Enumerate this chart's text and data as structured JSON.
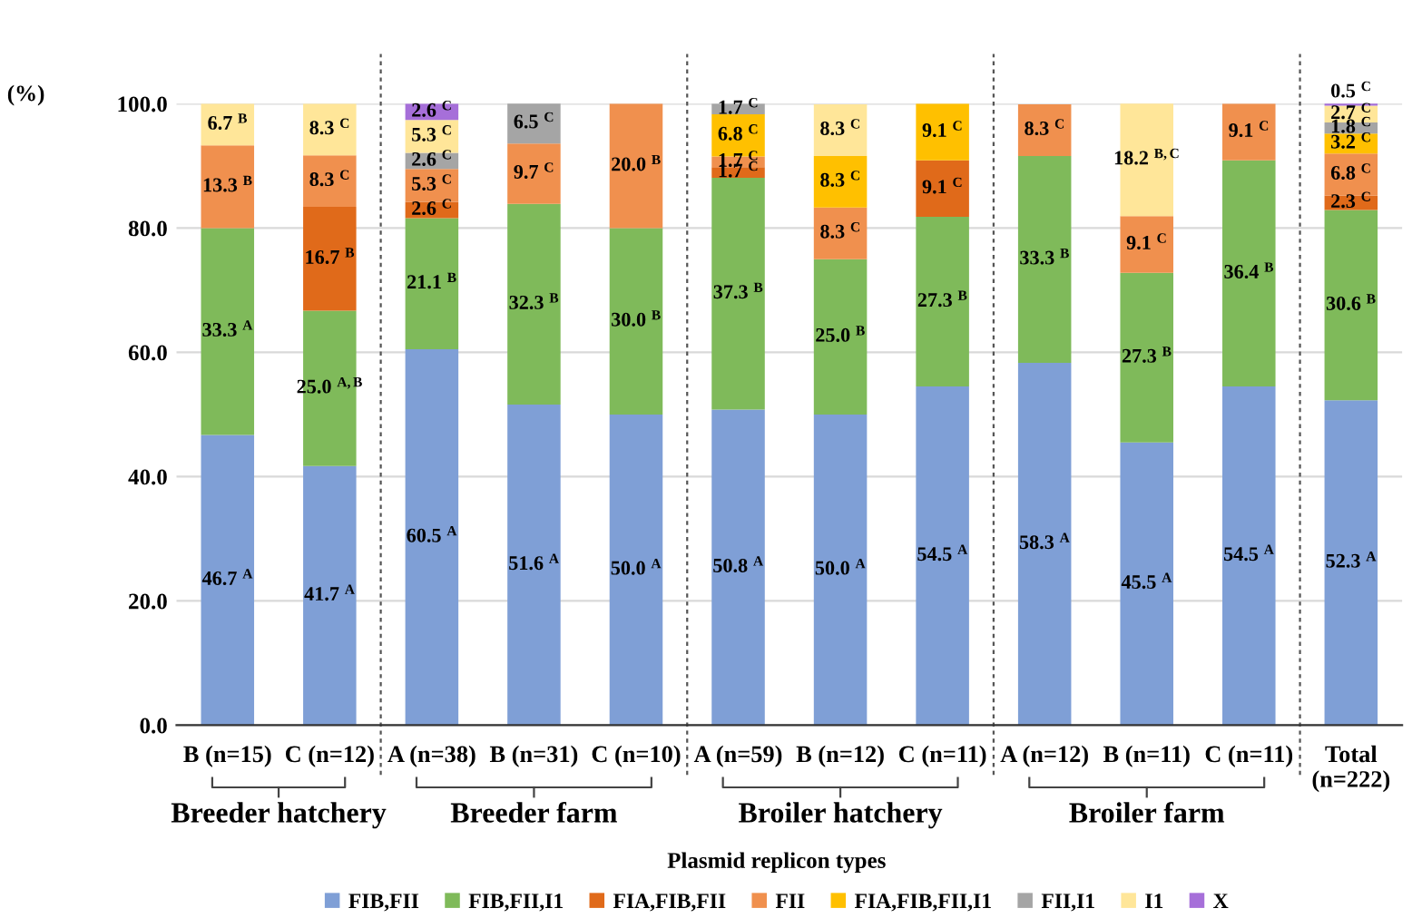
{
  "chart_data": {
    "type": "bar",
    "stacked": true,
    "ylabel": "(%)",
    "legend_title": "Plasmid replicon types",
    "legend": "bottom",
    "grid": "y",
    "categories": [
      "B (n=15)",
      "C (n=12)",
      "A (n=38)",
      "B (n=31)",
      "C (n=10)",
      "A (n=59)",
      "B (n=12)",
      "C (n=11)",
      "A (n=12)",
      "B (n=11)",
      "C (n=11)",
      "Total\n(n=222)"
    ],
    "annotations": [
      "Breeder hatchery",
      "Breeder farm",
      "Broiler hatchery",
      "Broiler farm"
    ],
    "ylim": [
      0,
      100
    ],
    "yticks": [
      {
        "value": 0,
        "label": "0.0"
      },
      {
        "value": 20,
        "label": "20.0"
      },
      {
        "value": 40,
        "label": "40.0"
      },
      {
        "value": 60,
        "label": "60.0"
      },
      {
        "value": 80,
        "label": "80.0"
      },
      {
        "value": 100,
        "label": "100.0"
      }
    ],
    "series": [
      {
        "name": "FIB,FII",
        "color": "#7f9fd6",
        "values": [
          46.7,
          41.7,
          60.5,
          51.6,
          50.0,
          50.8,
          50.0,
          54.5,
          58.3,
          45.5,
          54.5,
          52.3
        ],
        "value_labels": [
          "46.7 $^{A}$",
          "41.7 $^{A}$",
          "60.5 $^{A}$",
          "51.6 $^{A}$",
          "50.0 $^{A}$",
          "50.8 $^{A}$",
          "50.0 $^{A}$",
          "54.5 $^{A}$",
          "58.3 $^{A}$",
          "45.5 $^{A}$",
          "54.5 $^{A}$",
          "52.3 $^{A}$"
        ]
      },
      {
        "name": "FIB,FII,I1",
        "color": "#7fba5a",
        "values": [
          33.3,
          25.0,
          21.1,
          32.3,
          30.0,
          37.3,
          25.0,
          27.3,
          33.3,
          27.3,
          36.4,
          30.6
        ],
        "value_labels": [
          "33.3 $^{A}$",
          "25.0 $^{A,B}$",
          "21.1 $^{B}$",
          "32.3 $^{B}$",
          "30.0 $^{B}$",
          "37.3 $^{B}$",
          "25.0 $^{B}$",
          "27.3 $^{B}$",
          "33.3 $^{B}$",
          "27.3 $^{B}$",
          "36.4 $^{B}$",
          "30.6 $^{B}$"
        ]
      },
      {
        "name": "FIA,FIB,FII",
        "color": "#e06a1a",
        "values": [
          null,
          16.7,
          2.6,
          null,
          null,
          1.7,
          null,
          9.1,
          null,
          null,
          null,
          2.3
        ],
        "value_labels": [
          null,
          "16.7 $^{B}$",
          "2.6 $^{C}$",
          null,
          null,
          "1.7 $^{C}$",
          null,
          "9.1 $^{C}$",
          null,
          null,
          null,
          "2.3 $^{C}$"
        ]
      },
      {
        "name": "FII",
        "color": "#f0904e",
        "values": [
          13.3,
          8.3,
          5.3,
          9.7,
          20.0,
          1.7,
          8.3,
          null,
          8.3,
          9.1,
          9.1,
          6.8
        ],
        "value_labels": [
          "13.3 $^{B}$",
          "8.3 $^{C}$",
          "5.3 $^{C}$",
          "9.7 $^{C}$",
          "20.0 $^{B}$",
          "1.7 $^{C}$",
          "8.3 $^{C}$",
          null,
          "8.3 $^{C}$",
          "9.1 $^{C}$",
          "9.1 $^{C}$",
          "6.8 $^{C}$"
        ]
      },
      {
        "name": "FIA,FIB,FII,I1",
        "color": "#ffc000",
        "values": [
          null,
          null,
          null,
          null,
          null,
          6.8,
          8.3,
          9.1,
          null,
          null,
          null,
          3.2
        ],
        "value_labels": [
          null,
          null,
          null,
          null,
          null,
          "6.8 $^{C}$",
          "8.3 $^{C}$",
          "9.1 $^{C}$",
          null,
          null,
          null,
          "3.2 $^{C}$"
        ]
      },
      {
        "name": "FII,I1",
        "color": "#a5a5a5",
        "values": [
          null,
          null,
          2.6,
          6.5,
          null,
          1.7,
          null,
          null,
          null,
          null,
          null,
          1.8
        ],
        "value_labels": [
          null,
          null,
          "2.6 $^{C}$",
          "6.5 $^{C}$",
          null,
          "1.7 $^{C}$",
          null,
          null,
          null,
          null,
          null,
          "1.8 $^{C}$"
        ]
      },
      {
        "name": "I1",
        "color": "#ffe699",
        "values": [
          6.7,
          8.3,
          5.3,
          null,
          null,
          null,
          8.3,
          null,
          null,
          18.2,
          null,
          2.7
        ],
        "value_labels": [
          "6.7 $^{B}$",
          "8.3 $^{C}$",
          "5.3 $^{C}$",
          null,
          null,
          null,
          "8.3 $^{C}$",
          null,
          null,
          "18.2 $^{B,C}$",
          null,
          "2.7 $^{C}$"
        ]
      },
      {
        "name": "X",
        "color": "#a66fd9",
        "values": [
          null,
          null,
          2.6,
          null,
          null,
          null,
          null,
          null,
          null,
          null,
          null,
          0.5
        ],
        "value_labels": [
          null,
          null,
          "2.6 $^{C}$",
          null,
          null,
          null,
          null,
          null,
          null,
          null,
          null,
          "0.5 $^{C}$"
        ]
      }
    ]
  }
}
